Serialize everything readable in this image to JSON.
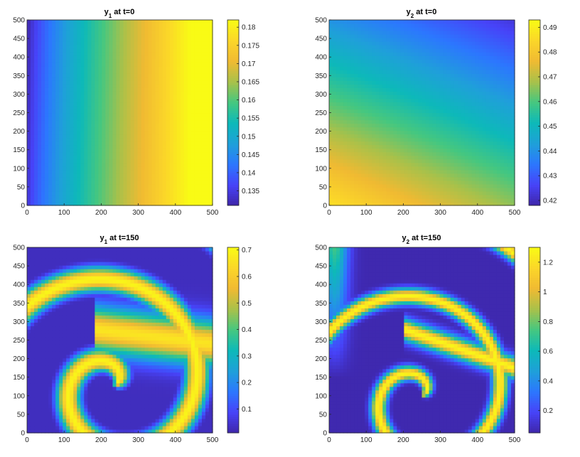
{
  "colormap": [
    "#3e26a8",
    "#4743f8",
    "#2c77fe",
    "#1fa0d9",
    "#0db9b9",
    "#45c780",
    "#a9c14a",
    "#f0ba32",
    "#fbd629",
    "#f9fb15"
  ],
  "chart_data": [
    {
      "type": "heatmap",
      "title_var": "y",
      "title_sub": "1",
      "title_rest": " at t=0",
      "x": {
        "lim": [
          0,
          500
        ],
        "ticks": [
          0,
          100,
          200,
          300,
          400,
          500
        ]
      },
      "y": {
        "lim": [
          0,
          500
        ],
        "ticks": [
          0,
          50,
          100,
          150,
          200,
          250,
          300,
          350,
          400,
          450,
          500
        ]
      },
      "colorbar": {
        "lim": [
          0.131,
          0.182
        ],
        "ticks": [
          0.135,
          0.14,
          0.145,
          0.15,
          0.155,
          0.16,
          0.165,
          0.17,
          0.175,
          0.18
        ],
        "labels": [
          "0.135",
          "0.14",
          "0.145",
          "0.15",
          "0.155",
          "0.16",
          "0.165",
          "0.17",
          "0.175",
          "0.18"
        ]
      },
      "pattern": "horizontal-gradient"
    },
    {
      "type": "heatmap",
      "title_var": "y",
      "title_sub": "2",
      "title_rest": " at t=0",
      "x": {
        "lim": [
          0,
          500
        ],
        "ticks": [
          0,
          100,
          200,
          300,
          400,
          500
        ]
      },
      "y": {
        "lim": [
          0,
          500
        ],
        "ticks": [
          0,
          50,
          100,
          150,
          200,
          250,
          300,
          350,
          400,
          450,
          500
        ]
      },
      "colorbar": {
        "lim": [
          0.418,
          0.493
        ],
        "ticks": [
          0.42,
          0.43,
          0.44,
          0.45,
          0.46,
          0.47,
          0.48,
          0.49
        ],
        "labels": [
          "0.42",
          "0.43",
          "0.44",
          "0.45",
          "0.46",
          "0.47",
          "0.48",
          "0.49"
        ]
      },
      "pattern": "diagonal-gradient"
    },
    {
      "type": "heatmap",
      "title_var": "y",
      "title_sub": "1",
      "title_rest": " at t=150",
      "x": {
        "lim": [
          0,
          500
        ],
        "ticks": [
          0,
          100,
          200,
          300,
          400,
          500
        ]
      },
      "y": {
        "lim": [
          0,
          500
        ],
        "ticks": [
          0,
          50,
          100,
          150,
          200,
          250,
          300,
          350,
          400,
          450,
          500
        ]
      },
      "colorbar": {
        "lim": [
          0.01,
          0.71
        ],
        "ticks": [
          0.1,
          0.2,
          0.3,
          0.4,
          0.5,
          0.6,
          0.7
        ],
        "labels": [
          "0.1",
          "0.2",
          "0.3",
          "0.4",
          "0.5",
          "0.6",
          "0.7"
        ]
      },
      "pattern": "spiral-wave"
    },
    {
      "type": "heatmap",
      "title_var": "y",
      "title_sub": "2",
      "title_rest": " at t=150",
      "x": {
        "lim": [
          0,
          500
        ],
        "ticks": [
          0,
          100,
          200,
          300,
          400,
          500
        ]
      },
      "y": {
        "lim": [
          0,
          500
        ],
        "ticks": [
          0,
          50,
          100,
          150,
          200,
          250,
          300,
          350,
          400,
          450,
          500
        ]
      },
      "colorbar": {
        "lim": [
          0.05,
          1.3
        ],
        "ticks": [
          0.2,
          0.4,
          0.6,
          0.8,
          1,
          1.2
        ],
        "labels": [
          "0.2",
          "0.4",
          "0.6",
          "0.8",
          "1",
          "1.2"
        ]
      },
      "pattern": "spiral-wave-thin"
    }
  ]
}
